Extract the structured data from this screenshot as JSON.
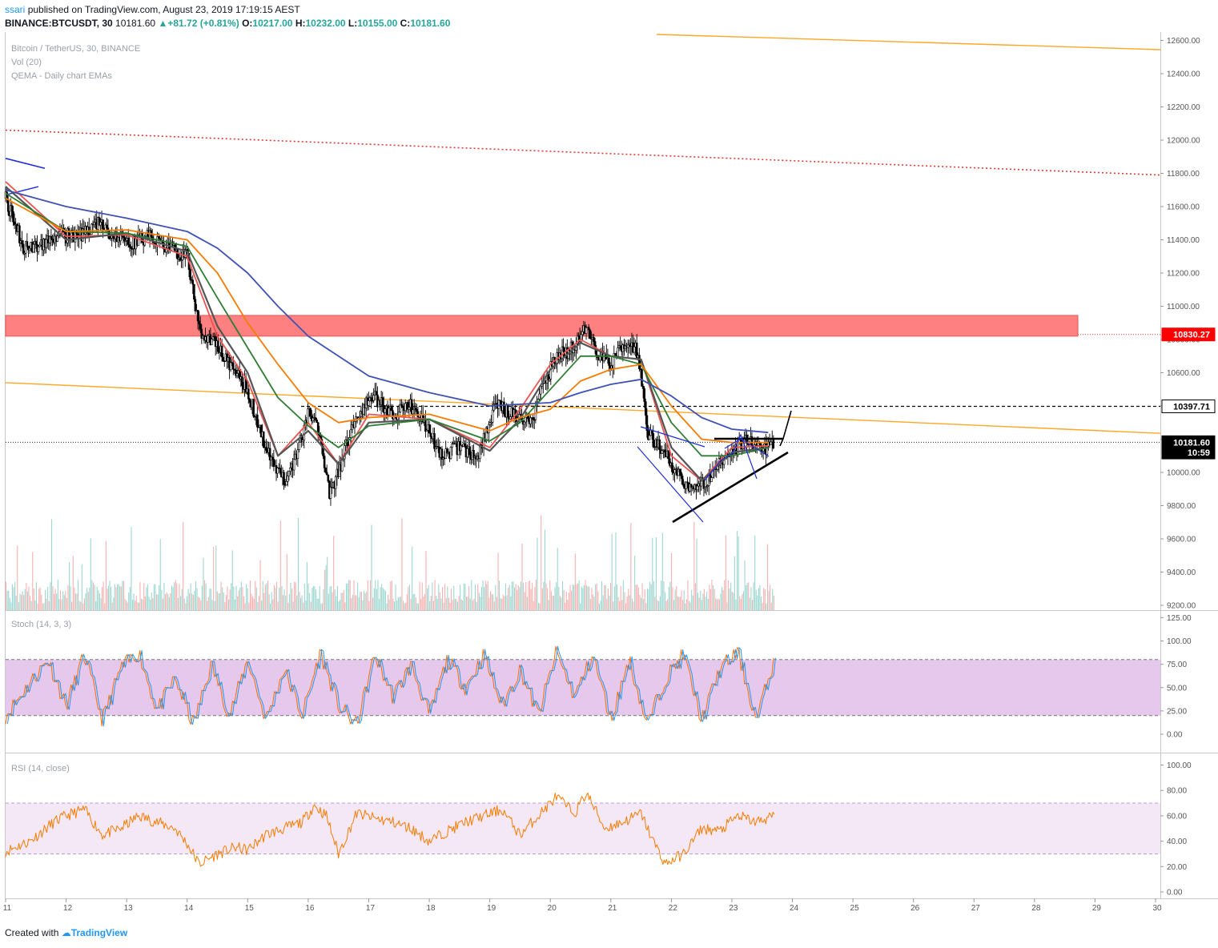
{
  "header": {
    "author": "ssari",
    "published_text": "published on TradingView.com, August 23, 2019 17:19:15 AEST",
    "symbol": "BINANCE:BTCUSDT, 30",
    "last": "10181.60",
    "change": "+81.72 (+0.81%)",
    "open_label": "O:",
    "open": "10217.00",
    "high_label": "H:",
    "high": "10232.00",
    "low_label": "L:",
    "low": "10155.00",
    "close_label": "C:",
    "close": "10181.60"
  },
  "panes": {
    "main_labels": [
      "Bitcoin / TetherUS, 30, BINANCE",
      "Vol (20)",
      "QEMA - Daily chart EMAs"
    ],
    "stoch_label": "Stoch (14, 3, 3)",
    "rsi_label": "RSI (14, close)"
  },
  "footer": {
    "created_with": "Created with",
    "brand": "TradingView"
  },
  "price_tags": [
    {
      "value": 10830.27,
      "text": "10830.27",
      "bg": "#ff0000",
      "fg": "#ffffff"
    },
    {
      "value": 10397.71,
      "text": "10397.71",
      "bg": "#ffffff",
      "fg": "#000000"
    },
    {
      "value": 10181.6,
      "text": "10181.60",
      "bg": "#000000",
      "fg": "#ffffff"
    },
    {
      "value": 10120.0,
      "text": "10:59",
      "bg": "#000000",
      "fg": "#ffffff"
    }
  ],
  "colors": {
    "up": "#26a69a",
    "down": "#ef5350",
    "ema_red": "#ef5350",
    "ema_dark": "#555555",
    "ema_green": "#2e7d32",
    "ema_orange": "#f57c00",
    "ema_blue": "#3f51b5",
    "stoch_k": "#2196f3",
    "stoch_d": "#ff6d00",
    "stoch_band": "#e1bee7",
    "rsi": "#f57c00",
    "rsi_band": "#f3e5f5"
  },
  "chart_data": {
    "type": "line",
    "x_ticks": [
      "11",
      "12",
      "13",
      "14",
      "15",
      "16",
      "17",
      "18",
      "19",
      "20",
      "21",
      "22",
      "23",
      "24",
      "25",
      "26",
      "27",
      "28",
      "29",
      "30"
    ],
    "price_axis": {
      "ticks": [
        "12600.00",
        "12400.00",
        "12200.00",
        "12000.00",
        "11800.00",
        "11600.00",
        "11400.00",
        "11200.00",
        "11000.00",
        "10800.00",
        "10600.00",
        "10400.00",
        "10200.00",
        "10000.00",
        "9800.00",
        "9600.00",
        "9400.00",
        "9200.00"
      ],
      "ylim": [
        9200,
        12680
      ]
    },
    "stoch_axis": {
      "ticks": [
        "125.00",
        "100.00",
        "75.00",
        "50.00",
        "25.00",
        "0.00"
      ],
      "band": [
        20,
        80
      ]
    },
    "rsi_axis": {
      "ticks": [
        "100.00",
        "80.00",
        "60.00",
        "40.00",
        "20.00",
        "0.00"
      ],
      "band": [
        30,
        70
      ]
    },
    "price_series": {
      "name": "BTCUSDT",
      "x": [
        11.0,
        11.3,
        11.6,
        11.9,
        12.2,
        12.5,
        12.8,
        13.1,
        13.4,
        13.7,
        14.0,
        14.2,
        14.4,
        14.6,
        14.8,
        15.0,
        15.2,
        15.4,
        15.6,
        15.8,
        16.0,
        16.2,
        16.35,
        16.5,
        16.7,
        16.9,
        17.1,
        17.4,
        17.7,
        17.9,
        18.2,
        18.5,
        18.8,
        19.1,
        19.4,
        19.7,
        19.8,
        20.1,
        20.4,
        20.6,
        20.8,
        21.0,
        21.2,
        21.4,
        21.5,
        21.6,
        21.8,
        22.0,
        22.2,
        22.4,
        22.6,
        22.8,
        23.0,
        23.2,
        23.4,
        23.6,
        23.7
      ],
      "values": [
        11650,
        11350,
        11380,
        11430,
        11420,
        11500,
        11420,
        11380,
        11420,
        11350,
        11300,
        10850,
        10800,
        10700,
        10600,
        10500,
        10250,
        10050,
        9950,
        10100,
        10350,
        10250,
        9850,
        10000,
        10250,
        10400,
        10450,
        10350,
        10400,
        10300,
        10100,
        10150,
        10100,
        10400,
        10350,
        10300,
        10450,
        10700,
        10750,
        10900,
        10700,
        10650,
        10750,
        10750,
        10600,
        10250,
        10150,
        10050,
        9950,
        9900,
        9950,
        10050,
        10100,
        10200,
        10150,
        10150,
        10181
      ]
    },
    "ema_series": [
      {
        "key": "ema_red",
        "x": [
          11.0,
          12.0,
          13.0,
          14.0,
          14.5,
          15.0,
          15.5,
          16.0,
          16.5,
          17.0,
          18.0,
          19.0,
          19.5,
          20.0,
          20.5,
          21.0,
          21.5,
          22.0,
          22.5,
          23.0,
          23.6
        ],
        "values": [
          11750,
          11420,
          11430,
          11300,
          10820,
          10550,
          10100,
          10300,
          10050,
          10350,
          10320,
          10150,
          10380,
          10650,
          10800,
          10700,
          10680,
          10100,
          9950,
          10150,
          10160
        ]
      },
      {
        "key": "ema_dark",
        "x": [
          11.0,
          12.0,
          13.0,
          14.0,
          14.5,
          15.0,
          15.5,
          16.0,
          16.5,
          17.0,
          18.0,
          19.0,
          19.5,
          20.0,
          20.5,
          21.0,
          21.5,
          22.0,
          22.5,
          23.0,
          23.6
        ],
        "values": [
          11720,
          11400,
          11440,
          11330,
          10880,
          10600,
          10100,
          10250,
          10050,
          10300,
          10320,
          10130,
          10320,
          10620,
          10780,
          10700,
          10680,
          10150,
          9950,
          10120,
          10150
        ]
      },
      {
        "key": "ema_green",
        "x": [
          11.0,
          12.0,
          13.0,
          14.0,
          14.5,
          15.0,
          15.5,
          16.0,
          16.5,
          17.0,
          18.0,
          19.0,
          19.5,
          20.0,
          20.5,
          21.0,
          21.5,
          22.0,
          22.5,
          23.0,
          23.6
        ],
        "values": [
          11680,
          11450,
          11440,
          11360,
          11050,
          10750,
          10450,
          10280,
          10150,
          10280,
          10320,
          10190,
          10300,
          10500,
          10700,
          10700,
          10650,
          10300,
          10100,
          10100,
          10150
        ]
      },
      {
        "key": "ema_orange",
        "x": [
          11.0,
          12.0,
          13.0,
          14.0,
          14.5,
          15.0,
          15.5,
          16.0,
          16.5,
          17.0,
          18.0,
          19.0,
          19.5,
          20.0,
          20.5,
          21.0,
          21.5,
          22.0,
          22.5,
          23.0,
          23.6
        ],
        "values": [
          11650,
          11450,
          11460,
          11400,
          11200,
          10900,
          10650,
          10420,
          10300,
          10330,
          10350,
          10250,
          10330,
          10380,
          10550,
          10620,
          10650,
          10400,
          10200,
          10180,
          10180
        ]
      },
      {
        "key": "ema_blue",
        "x": [
          11.0,
          12.0,
          13.0,
          14.0,
          14.5,
          15.0,
          15.5,
          16.0,
          16.5,
          17.0,
          18.0,
          19.0,
          19.5,
          20.0,
          20.5,
          21.0,
          21.5,
          22.0,
          22.5,
          23.0,
          23.6
        ],
        "values": [
          11700,
          11600,
          11530,
          11450,
          11350,
          11200,
          11000,
          10820,
          10700,
          10580,
          10480,
          10400,
          10410,
          10420,
          10480,
          10530,
          10560,
          10460,
          10330,
          10260,
          10240
        ]
      }
    ],
    "stoch_series": {
      "name": "Stoch %K",
      "x": [
        11.0,
        11.4,
        11.7,
        12.0,
        12.3,
        12.6,
        12.9,
        13.2,
        13.5,
        13.8,
        14.1,
        14.4,
        14.7,
        15.0,
        15.3,
        15.6,
        15.9,
        16.2,
        16.5,
        16.8,
        17.1,
        17.4,
        17.7,
        18.0,
        18.3,
        18.6,
        18.9,
        19.2,
        19.5,
        19.8,
        20.1,
        20.4,
        20.7,
        21.0,
        21.3,
        21.6,
        21.9,
        22.2,
        22.5,
        22.8,
        23.1,
        23.4,
        23.7
      ],
      "values": [
        20,
        55,
        80,
        30,
        85,
        15,
        70,
        88,
        25,
        60,
        10,
        75,
        20,
        80,
        15,
        70,
        20,
        88,
        30,
        10,
        85,
        40,
        75,
        20,
        80,
        50,
        85,
        30,
        70,
        20,
        88,
        40,
        85,
        15,
        80,
        10,
        60,
        85,
        15,
        70,
        88,
        15,
        80
      ]
    },
    "rsi_series": {
      "name": "RSI",
      "x": [
        11.0,
        11.4,
        11.8,
        12.0,
        12.3,
        12.6,
        12.9,
        13.2,
        13.5,
        13.8,
        14.0,
        14.2,
        14.5,
        14.8,
        15.0,
        15.3,
        15.6,
        15.9,
        16.1,
        16.3,
        16.5,
        16.8,
        17.1,
        17.4,
        17.7,
        18.0,
        18.3,
        18.6,
        18.9,
        19.2,
        19.5,
        19.8,
        20.1,
        20.4,
        20.6,
        20.9,
        21.2,
        21.5,
        21.7,
        21.9,
        22.2,
        22.5,
        22.8,
        23.1,
        23.4,
        23.7
      ],
      "values": [
        32,
        40,
        55,
        60,
        65,
        45,
        50,
        60,
        55,
        50,
        38,
        22,
        30,
        35,
        33,
        45,
        50,
        55,
        68,
        60,
        30,
        62,
        58,
        55,
        50,
        40,
        48,
        55,
        60,
        65,
        45,
        60,
        75,
        62,
        78,
        50,
        55,
        62,
        40,
        22,
        30,
        50,
        48,
        60,
        55,
        60
      ]
    },
    "volume": {
      "x_start": 11.0,
      "x_end": 23.7,
      "note": "volume histogram bars along lower portion of price pane"
    }
  }
}
